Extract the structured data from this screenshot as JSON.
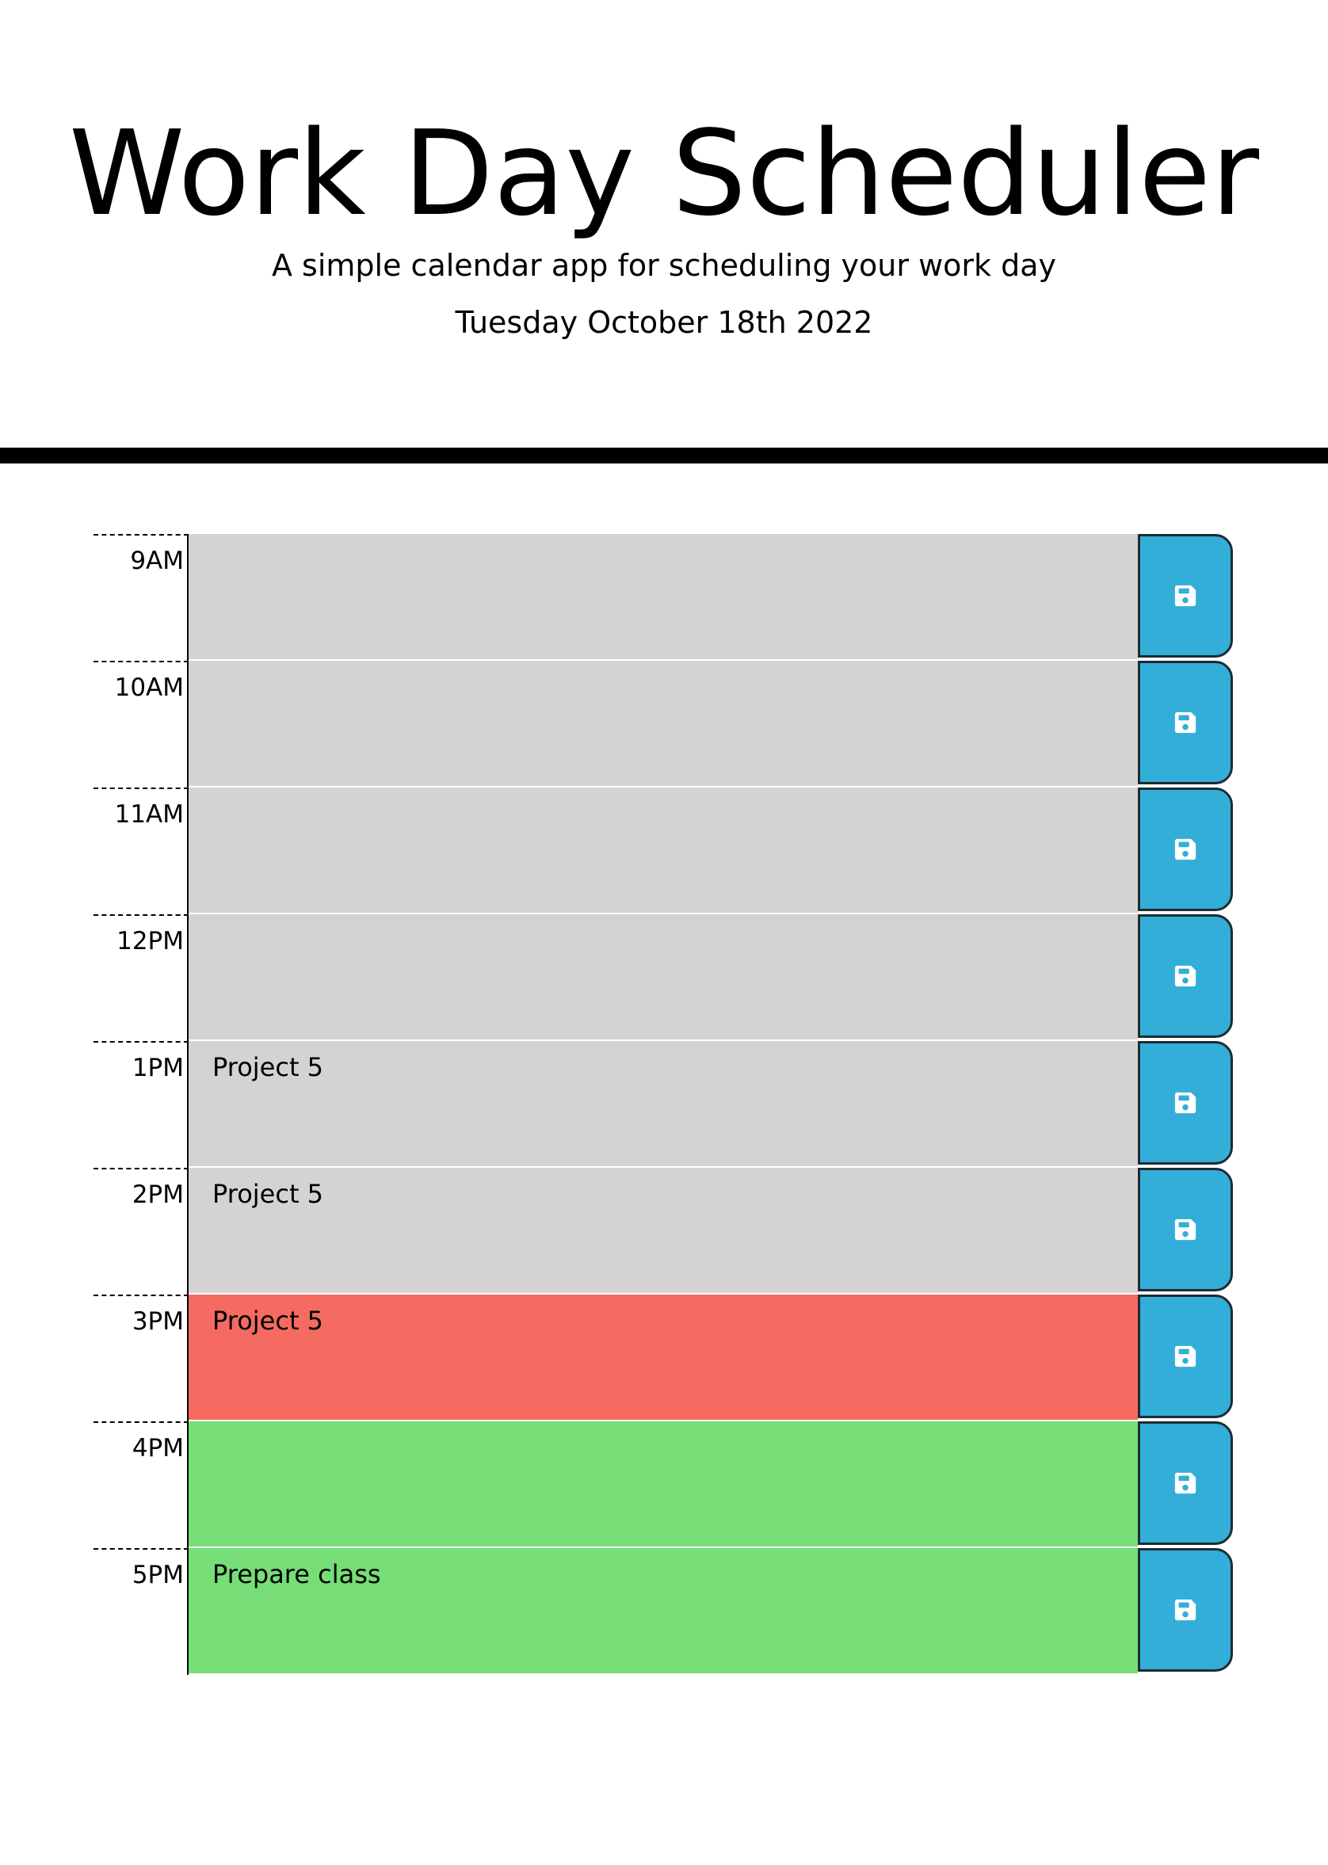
{
  "header": {
    "title": "Work Day Scheduler",
    "subtitle": "A simple calendar app for scheduling your work day",
    "current_day": "Tuesday October 18th 2022"
  },
  "colors": {
    "past": "#d3d3d3",
    "present": "#f56a61",
    "future": "#77dd77",
    "save_button": "#33aed8"
  },
  "time_blocks": [
    {
      "hour": "9AM",
      "text": "",
      "state": "past",
      "icon": "save-icon"
    },
    {
      "hour": "10AM",
      "text": "",
      "state": "past",
      "icon": "save-icon"
    },
    {
      "hour": "11AM",
      "text": "",
      "state": "past",
      "icon": "save-icon"
    },
    {
      "hour": "12PM",
      "text": "",
      "state": "past",
      "icon": "save-icon"
    },
    {
      "hour": "1PM",
      "text": "Project 5",
      "state": "past",
      "icon": "save-icon"
    },
    {
      "hour": "2PM",
      "text": "Project 5",
      "state": "past",
      "icon": "save-icon"
    },
    {
      "hour": "3PM",
      "text": "Project 5",
      "state": "present",
      "icon": "save-icon"
    },
    {
      "hour": "4PM",
      "text": "",
      "state": "future",
      "icon": "save-icon"
    },
    {
      "hour": "5PM",
      "text": "Prepare class",
      "state": "future",
      "icon": "save-icon"
    }
  ]
}
